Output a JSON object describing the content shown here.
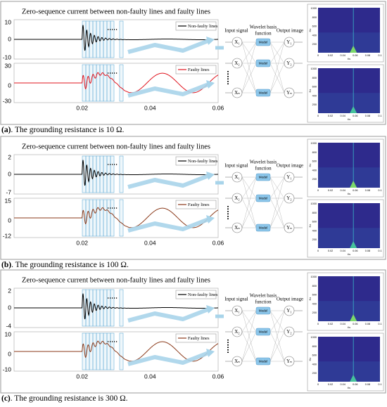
{
  "panels": [
    {
      "title": "Zero-sequence current between non-faulty lines and faulty lines",
      "top_plot": {
        "yticks": [
          "10",
          "0",
          "-10"
        ],
        "legend": "Non-faulty lines"
      },
      "bottom_plot": {
        "yticks": [
          "30",
          "0",
          "-30"
        ],
        "legend": "Faulty lines",
        "line_color": "#e0141e"
      },
      "xticks": [
        "0.02",
        "0.04",
        "0.06"
      ],
      "network": {
        "input_label": "Input signal",
        "wavelet_label": [
          "Wavelet basis",
          "function"
        ],
        "output_label": "Output image",
        "inputs": [
          "X₁",
          "X₂",
          "Xₙ"
        ],
        "models": [
          "Model",
          "Model",
          "Model"
        ],
        "outputs": [
          "Y₁",
          "Y₂",
          "Yₙ"
        ]
      },
      "spectrogram": {
        "xticks": [
          "0",
          "0.02",
          "0.04",
          "0.06",
          "0.08",
          "0.1"
        ],
        "yticks": [
          "1000",
          "800",
          "600",
          "400",
          "200"
        ],
        "xlabel": "t/s",
        "ylabel": "Hz"
      },
      "caption": {
        "label": "(a)",
        "text": ". The grounding resistance is 10 Ω."
      }
    },
    {
      "title": "Zero-sequence current between non-faulty lines and faulty lines",
      "top_plot": {
        "yticks": [
          "2",
          "0",
          "-7"
        ],
        "legend": "Non-faulty lines"
      },
      "bottom_plot": {
        "yticks": [
          "15",
          "0",
          "-12"
        ],
        "legend": "Faulty lines",
        "line_color": "#8b3a1a"
      },
      "xticks": [
        "0.02",
        "0.04",
        "0.06"
      ],
      "network": {
        "input_label": "Input signal",
        "wavelet_label": [
          "Wavelet basis",
          "function"
        ],
        "output_label": "Output image",
        "inputs": [
          "X₁",
          "X₂",
          "Xₙ"
        ],
        "models": [
          "Model",
          "Model",
          "Model"
        ],
        "outputs": [
          "Y₁",
          "Y₂",
          "Yₙ"
        ]
      },
      "spectrogram": {
        "xticks": [
          "0",
          "0.02",
          "0.04",
          "0.06",
          "0.08",
          "0.1"
        ],
        "yticks": [
          "1000",
          "800",
          "600",
          "400",
          "200"
        ],
        "xlabel": "t/s",
        "ylabel": "Hz"
      },
      "caption": {
        "label": "(b)",
        "text": ". The grounding resistance is 100 Ω."
      }
    },
    {
      "title": "Zero-sequence current between non-faulty lines and faulty lines",
      "top_plot": {
        "yticks": [
          "2",
          "0",
          "-4"
        ],
        "legend": "Non-faulty lines"
      },
      "bottom_plot": {
        "yticks": [
          "10",
          "0",
          "-10"
        ],
        "legend": "Faulty lines",
        "line_color": "#8b3a1a"
      },
      "xticks": [
        "0.02",
        "0.04",
        "0.06"
      ],
      "network": {
        "input_label": "Input signal",
        "wavelet_label": [
          "Wavelet basis",
          "function"
        ],
        "output_label": "Output image",
        "inputs": [
          "X₁",
          "X₂",
          "Xₙ"
        ],
        "models": [
          "Model",
          "Model",
          "Model"
        ],
        "outputs": [
          "Y₁",
          "Y₂",
          "Yₙ"
        ]
      },
      "spectrogram": {
        "xticks": [
          "0",
          "0.02",
          "0.04",
          "0.06",
          "0.08",
          "0.1"
        ],
        "yticks": [
          "1000",
          "800",
          "600",
          "400",
          "200"
        ],
        "xlabel": "t/s",
        "ylabel": "Hz"
      },
      "caption": {
        "label": "(c)",
        "text": ". The grounding resistance is 300 Ω."
      }
    }
  ]
}
